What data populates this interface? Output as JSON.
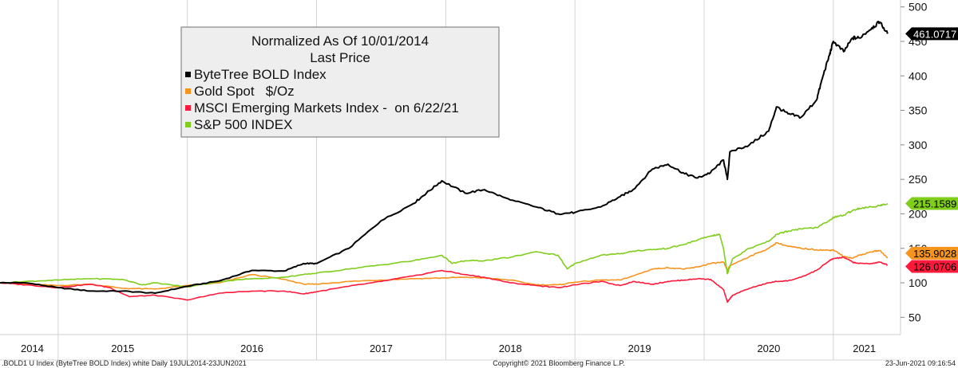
{
  "chart_data": {
    "type": "line",
    "legend": {
      "title_line1": "Normalized As Of 10/01/2014",
      "title_line2": "Last Price",
      "placement": "top-left"
    },
    "yaxis": {
      "ticks": [
        50,
        100,
        150,
        200,
        250,
        300,
        350,
        400,
        450,
        500
      ],
      "ylim": [
        25,
        510
      ],
      "side": "right"
    },
    "xaxis": {
      "xlim": [
        2014.55,
        2021.52
      ],
      "year_labels": [
        {
          "label": "2014",
          "x": 2014.8
        },
        {
          "label": "2015",
          "x": 2015.5
        },
        {
          "label": "2016",
          "x": 2016.5
        },
        {
          "label": "2017",
          "x": 2017.5
        },
        {
          "label": "2018",
          "x": 2018.5
        },
        {
          "label": "2019",
          "x": 2019.5
        },
        {
          "label": "2020",
          "x": 2020.5
        },
        {
          "label": "2021",
          "x": 2021.24
        }
      ],
      "separators": [
        2015.0,
        2016.0,
        2017.0,
        2018.0,
        2019.0,
        2020.0,
        2021.0
      ]
    },
    "series": [
      {
        "name": "ByteTree BOLD Index",
        "legend_label": "ByteTree BOLD Index",
        "color": "#000000",
        "last_value_label": "461.0717",
        "points": [
          [
            2014.55,
            100
          ],
          [
            2014.75,
            100
          ],
          [
            2015.0,
            93
          ],
          [
            2015.25,
            88
          ],
          [
            2015.5,
            88
          ],
          [
            2015.75,
            85
          ],
          [
            2016.0,
            95
          ],
          [
            2016.25,
            103
          ],
          [
            2016.5,
            118
          ],
          [
            2016.75,
            117
          ],
          [
            2016.9,
            128
          ],
          [
            2017.0,
            128
          ],
          [
            2017.25,
            150
          ],
          [
            2017.5,
            190
          ],
          [
            2017.75,
            215
          ],
          [
            2017.85,
            230
          ],
          [
            2017.97,
            248
          ],
          [
            2018.15,
            230
          ],
          [
            2018.3,
            235
          ],
          [
            2018.5,
            220
          ],
          [
            2018.7,
            210
          ],
          [
            2018.87,
            200
          ],
          [
            2019.0,
            202
          ],
          [
            2019.2,
            210
          ],
          [
            2019.35,
            225
          ],
          [
            2019.45,
            235
          ],
          [
            2019.6,
            265
          ],
          [
            2019.72,
            272
          ],
          [
            2019.85,
            258
          ],
          [
            2019.95,
            252
          ],
          [
            2020.05,
            260
          ],
          [
            2020.15,
            278
          ],
          [
            2020.18,
            250
          ],
          [
            2020.2,
            290
          ],
          [
            2020.35,
            300
          ],
          [
            2020.5,
            320
          ],
          [
            2020.56,
            355
          ],
          [
            2020.65,
            345
          ],
          [
            2020.75,
            340
          ],
          [
            2020.87,
            365
          ],
          [
            2020.92,
            400
          ],
          [
            2020.97,
            430
          ],
          [
            2021.0,
            450
          ],
          [
            2021.08,
            435
          ],
          [
            2021.15,
            455
          ],
          [
            2021.2,
            455
          ],
          [
            2021.3,
            470
          ],
          [
            2021.36,
            478
          ],
          [
            2021.42,
            461
          ]
        ]
      },
      {
        "name": "Gold Spot $/Oz",
        "legend_label": "Gold Spot   $/Oz",
        "color": "#f7941d",
        "last_value_label": "135.9028",
        "points": [
          [
            2014.55,
            100
          ],
          [
            2014.75,
            98
          ],
          [
            2015.0,
            96
          ],
          [
            2015.25,
            98
          ],
          [
            2015.5,
            92
          ],
          [
            2015.75,
            91
          ],
          [
            2016.0,
            96
          ],
          [
            2016.25,
            100
          ],
          [
            2016.5,
            112
          ],
          [
            2016.75,
            105
          ],
          [
            2016.9,
            98
          ],
          [
            2017.0,
            98
          ],
          [
            2017.25,
            102
          ],
          [
            2017.5,
            104
          ],
          [
            2017.75,
            106
          ],
          [
            2017.97,
            107
          ],
          [
            2018.15,
            108
          ],
          [
            2018.3,
            107
          ],
          [
            2018.5,
            104
          ],
          [
            2018.7,
            97
          ],
          [
            2018.87,
            97
          ],
          [
            2019.0,
            101
          ],
          [
            2019.2,
            104
          ],
          [
            2019.35,
            104
          ],
          [
            2019.45,
            110
          ],
          [
            2019.6,
            120
          ],
          [
            2019.72,
            122
          ],
          [
            2019.85,
            120
          ],
          [
            2019.95,
            123
          ],
          [
            2020.05,
            128
          ],
          [
            2020.15,
            130
          ],
          [
            2020.18,
            118
          ],
          [
            2020.2,
            125
          ],
          [
            2020.35,
            138
          ],
          [
            2020.5,
            150
          ],
          [
            2020.56,
            158
          ],
          [
            2020.65,
            153
          ],
          [
            2020.75,
            150
          ],
          [
            2020.87,
            148
          ],
          [
            2020.97,
            147
          ],
          [
            2021.0,
            148
          ],
          [
            2021.08,
            138
          ],
          [
            2021.15,
            136
          ],
          [
            2021.2,
            140
          ],
          [
            2021.3,
            145
          ],
          [
            2021.36,
            147
          ],
          [
            2021.42,
            136
          ]
        ]
      },
      {
        "name": "MSCI Emerging Markets Index - on 6/22/21",
        "legend_label": "MSCI Emerging Markets Index -  on 6/22/21",
        "color": "#ff1a3c",
        "last_value_label": "126.0706",
        "points": [
          [
            2014.55,
            100
          ],
          [
            2014.75,
            97
          ],
          [
            2015.0,
            93
          ],
          [
            2015.25,
            98
          ],
          [
            2015.4,
            93
          ],
          [
            2015.55,
            80
          ],
          [
            2015.75,
            82
          ],
          [
            2016.0,
            75
          ],
          [
            2016.25,
            85
          ],
          [
            2016.5,
            88
          ],
          [
            2016.75,
            88
          ],
          [
            2016.9,
            84
          ],
          [
            2017.0,
            87
          ],
          [
            2017.25,
            95
          ],
          [
            2017.5,
            102
          ],
          [
            2017.75,
            110
          ],
          [
            2017.97,
            118
          ],
          [
            2018.15,
            112
          ],
          [
            2018.3,
            108
          ],
          [
            2018.5,
            100
          ],
          [
            2018.7,
            96
          ],
          [
            2018.87,
            93
          ],
          [
            2019.0,
            97
          ],
          [
            2019.2,
            102
          ],
          [
            2019.35,
            96
          ],
          [
            2019.45,
            102
          ],
          [
            2019.6,
            98
          ],
          [
            2019.72,
            102
          ],
          [
            2019.85,
            104
          ],
          [
            2019.95,
            106
          ],
          [
            2020.05,
            105
          ],
          [
            2020.15,
            90
          ],
          [
            2020.18,
            72
          ],
          [
            2020.22,
            82
          ],
          [
            2020.35,
            92
          ],
          [
            2020.5,
            100
          ],
          [
            2020.56,
            102
          ],
          [
            2020.65,
            103
          ],
          [
            2020.75,
            108
          ],
          [
            2020.87,
            118
          ],
          [
            2020.97,
            132
          ],
          [
            2021.0,
            135
          ],
          [
            2021.08,
            137
          ],
          [
            2021.15,
            130
          ],
          [
            2021.2,
            128
          ],
          [
            2021.3,
            128
          ],
          [
            2021.36,
            130
          ],
          [
            2021.42,
            126
          ]
        ]
      },
      {
        "name": "S&P 500 INDEX",
        "legend_label": "S&P 500 INDEX",
        "color": "#7fce1b",
        "last_value_label": "215.1589",
        "points": [
          [
            2014.55,
            100
          ],
          [
            2014.75,
            102
          ],
          [
            2015.0,
            104
          ],
          [
            2015.25,
            106
          ],
          [
            2015.5,
            105
          ],
          [
            2015.65,
            97
          ],
          [
            2015.75,
            100
          ],
          [
            2016.0,
            94
          ],
          [
            2016.25,
            102
          ],
          [
            2016.5,
            106
          ],
          [
            2016.75,
            108
          ],
          [
            2016.9,
            112
          ],
          [
            2017.0,
            114
          ],
          [
            2017.25,
            120
          ],
          [
            2017.5,
            126
          ],
          [
            2017.75,
            132
          ],
          [
            2017.97,
            140
          ],
          [
            2018.05,
            128
          ],
          [
            2018.15,
            132
          ],
          [
            2018.3,
            132
          ],
          [
            2018.5,
            137
          ],
          [
            2018.7,
            145
          ],
          [
            2018.87,
            140
          ],
          [
            2018.94,
            120
          ],
          [
            2019.0,
            128
          ],
          [
            2019.2,
            140
          ],
          [
            2019.35,
            142
          ],
          [
            2019.45,
            146
          ],
          [
            2019.6,
            148
          ],
          [
            2019.72,
            150
          ],
          [
            2019.85,
            156
          ],
          [
            2019.95,
            162
          ],
          [
            2020.05,
            168
          ],
          [
            2020.12,
            170
          ],
          [
            2020.15,
            150
          ],
          [
            2020.18,
            113
          ],
          [
            2020.22,
            135
          ],
          [
            2020.35,
            150
          ],
          [
            2020.5,
            160
          ],
          [
            2020.56,
            170
          ],
          [
            2020.65,
            175
          ],
          [
            2020.75,
            178
          ],
          [
            2020.87,
            180
          ],
          [
            2020.97,
            190
          ],
          [
            2021.0,
            195
          ],
          [
            2021.08,
            198
          ],
          [
            2021.15,
            205
          ],
          [
            2021.2,
            208
          ],
          [
            2021.3,
            210
          ],
          [
            2021.36,
            212
          ],
          [
            2021.42,
            215
          ]
        ]
      }
    ]
  },
  "footer": {
    "left": ".BOLD1 U Index (ByteTree BOLD Index) white  Daily 19JUL2014-23JUN2021",
    "center": "Copyright© 2021 Bloomberg Finance L.P.",
    "right": "23-Jun-2021 09:16:54"
  }
}
